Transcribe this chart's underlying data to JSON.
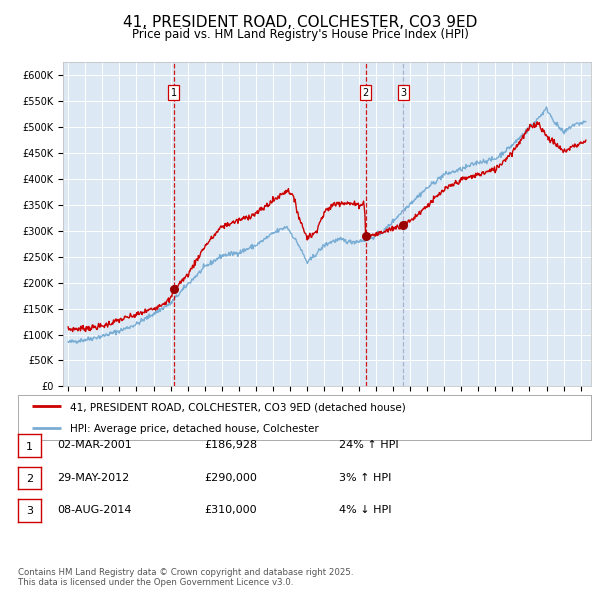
{
  "title": "41, PRESIDENT ROAD, COLCHESTER, CO3 9ED",
  "subtitle": "Price paid vs. HM Land Registry's House Price Index (HPI)",
  "title_fontsize": 11,
  "subtitle_fontsize": 8.5,
  "background_color": "#ffffff",
  "plot_bg_color": "#dce9f5",
  "grid_color": "#ffffff",
  "legend1": "41, PRESIDENT ROAD, COLCHESTER, CO3 9ED (detached house)",
  "legend2": "HPI: Average price, detached house, Colchester",
  "footer": "Contains HM Land Registry data © Crown copyright and database right 2025.\nThis data is licensed under the Open Government Licence v3.0.",
  "transactions": [
    {
      "num": 1,
      "date": "02-MAR-2001",
      "price": 186928,
      "pct": "24%",
      "dir": "↑",
      "year_x": 2001.17
    },
    {
      "num": 2,
      "date": "29-MAY-2012",
      "price": 290000,
      "pct": "3%",
      "dir": "↑",
      "year_x": 2012.41
    },
    {
      "num": 3,
      "date": "08-AUG-2014",
      "price": 310000,
      "pct": "4%",
      "dir": "↓",
      "year_x": 2014.6
    }
  ],
  "red_line_color": "#cc0000",
  "blue_line_color": "#7aadd4",
  "vline_color_red": "#cc0000",
  "vline_color_gray": "#aaaacc",
  "dot_color": "#990000",
  "ylim": [
    0,
    625000
  ],
  "yticks": [
    0,
    50000,
    100000,
    150000,
    200000,
    250000,
    300000,
    350000,
    400000,
    450000,
    500000,
    550000,
    600000
  ],
  "xlim_start": 1994.7,
  "xlim_end": 2025.6,
  "hpi_anchors": [
    [
      1995.0,
      85000
    ],
    [
      1996.0,
      90000
    ],
    [
      1997.0,
      97000
    ],
    [
      1998.0,
      107000
    ],
    [
      1999.0,
      120000
    ],
    [
      2000.0,
      140000
    ],
    [
      2001.0,
      160000
    ],
    [
      2002.0,
      197000
    ],
    [
      2003.0,
      230000
    ],
    [
      2004.0,
      252000
    ],
    [
      2005.0,
      258000
    ],
    [
      2006.0,
      272000
    ],
    [
      2007.0,
      295000
    ],
    [
      2007.8,
      308000
    ],
    [
      2008.5,
      272000
    ],
    [
      2009.0,
      238000
    ],
    [
      2009.5,
      255000
    ],
    [
      2010.0,
      272000
    ],
    [
      2010.5,
      280000
    ],
    [
      2011.0,
      283000
    ],
    [
      2011.5,
      278000
    ],
    [
      2012.0,
      280000
    ],
    [
      2012.5,
      283000
    ],
    [
      2013.0,
      290000
    ],
    [
      2013.5,
      300000
    ],
    [
      2014.0,
      318000
    ],
    [
      2015.0,
      352000
    ],
    [
      2016.0,
      382000
    ],
    [
      2017.0,
      408000
    ],
    [
      2018.0,
      418000
    ],
    [
      2019.0,
      432000
    ],
    [
      2020.0,
      438000
    ],
    [
      2021.0,
      465000
    ],
    [
      2022.0,
      498000
    ],
    [
      2023.0,
      535000
    ],
    [
      2023.5,
      508000
    ],
    [
      2024.0,
      488000
    ],
    [
      2024.5,
      503000
    ],
    [
      2025.3,
      510000
    ]
  ],
  "red_anchors": [
    [
      1995.0,
      110000
    ],
    [
      1996.0,
      112000
    ],
    [
      1997.0,
      116000
    ],
    [
      1998.0,
      128000
    ],
    [
      1999.0,
      138000
    ],
    [
      2000.0,
      150000
    ],
    [
      2001.0,
      168000
    ],
    [
      2001.17,
      187000
    ],
    [
      2002.0,
      215000
    ],
    [
      2003.0,
      270000
    ],
    [
      2004.0,
      308000
    ],
    [
      2005.0,
      320000
    ],
    [
      2006.0,
      333000
    ],
    [
      2007.0,
      358000
    ],
    [
      2007.8,
      378000
    ],
    [
      2008.1,
      372000
    ],
    [
      2008.6,
      318000
    ],
    [
      2008.9,
      293000
    ],
    [
      2009.0,
      288000
    ],
    [
      2009.4,
      293000
    ],
    [
      2010.0,
      335000
    ],
    [
      2010.5,
      350000
    ],
    [
      2011.0,
      355000
    ],
    [
      2011.5,
      352000
    ],
    [
      2012.0,
      350000
    ],
    [
      2012.35,
      352000
    ],
    [
      2012.41,
      290000
    ],
    [
      2012.5,
      290000
    ],
    [
      2013.0,
      293000
    ],
    [
      2013.5,
      298000
    ],
    [
      2014.0,
      305000
    ],
    [
      2014.6,
      310000
    ],
    [
      2015.0,
      318000
    ],
    [
      2016.0,
      348000
    ],
    [
      2017.0,
      378000
    ],
    [
      2018.0,
      398000
    ],
    [
      2019.0,
      408000
    ],
    [
      2020.0,
      418000
    ],
    [
      2021.0,
      452000
    ],
    [
      2022.0,
      498000
    ],
    [
      2022.5,
      508000
    ],
    [
      2023.0,
      482000
    ],
    [
      2023.5,
      468000
    ],
    [
      2024.0,
      452000
    ],
    [
      2024.5,
      462000
    ],
    [
      2025.3,
      472000
    ]
  ]
}
